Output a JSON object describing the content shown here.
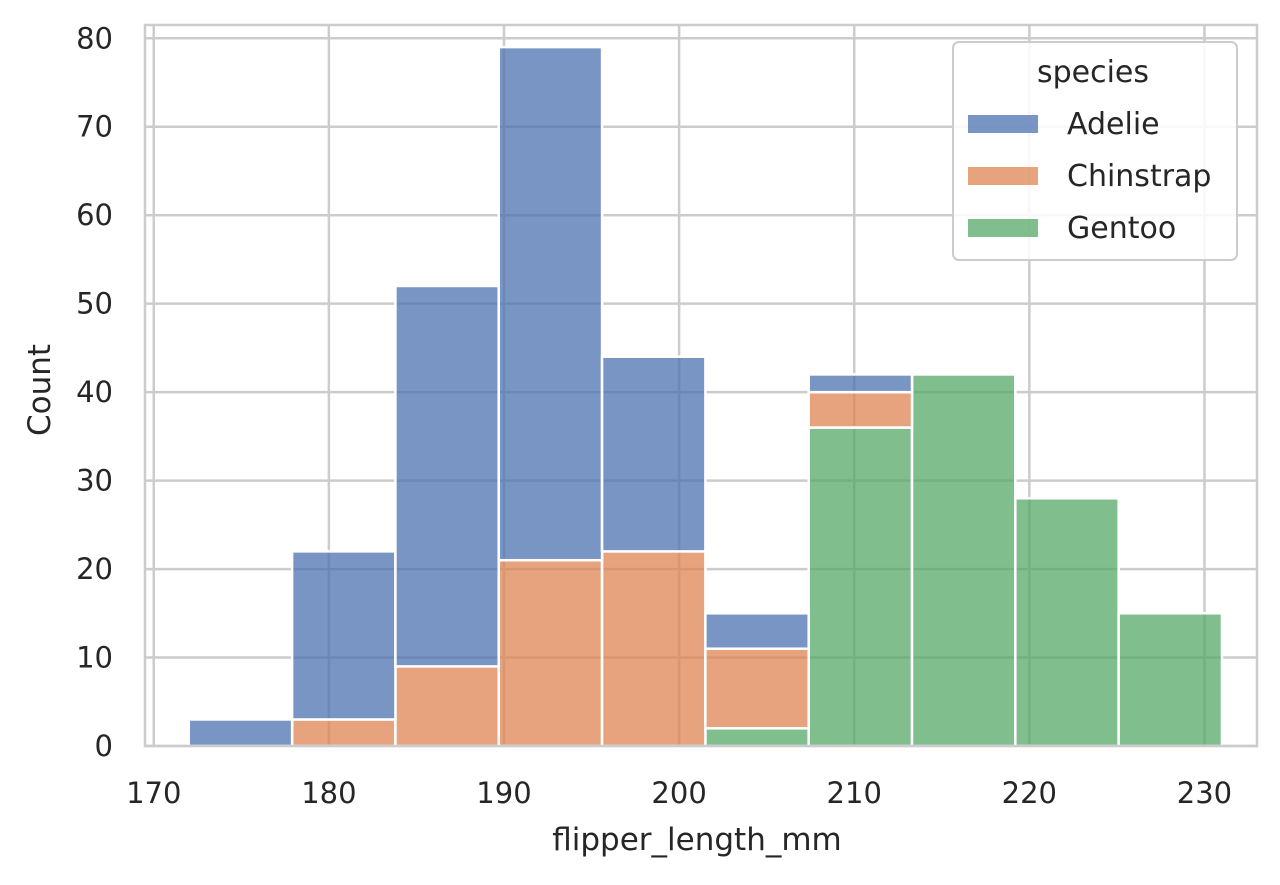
{
  "chart_data": {
    "type": "bar",
    "stacked": true,
    "xlabel": "flipper_length_mm",
    "ylabel": "Count",
    "xlim": [
      169.5,
      233
    ],
    "ylim": [
      0,
      81.5
    ],
    "xticks": [
      "170",
      "180",
      "190",
      "200",
      "210",
      "220",
      "230"
    ],
    "yticks": [
      "0",
      "10",
      "20",
      "30",
      "40",
      "50",
      "60",
      "70",
      "80"
    ],
    "grid": true,
    "legend": {
      "title": "species",
      "placement": "top-right"
    },
    "bin_edges": [
      172.0,
      177.9,
      183.8,
      189.7,
      195.6,
      201.5,
      207.4,
      213.3,
      219.2,
      225.1,
      231.0
    ],
    "series": [
      {
        "name": "Gentoo",
        "color": "#55a868",
        "values": [
          0,
          0,
          0,
          0,
          0,
          2,
          36,
          42,
          28,
          15
        ]
      },
      {
        "name": "Chinstrap",
        "color": "#dd8452",
        "values": [
          0,
          3,
          9,
          21,
          22,
          9,
          4,
          0,
          0,
          0
        ]
      },
      {
        "name": "Adelie",
        "color": "#4c72b0",
        "values": [
          3,
          19,
          43,
          58,
          22,
          4,
          2,
          0,
          0,
          0
        ]
      }
    ]
  }
}
